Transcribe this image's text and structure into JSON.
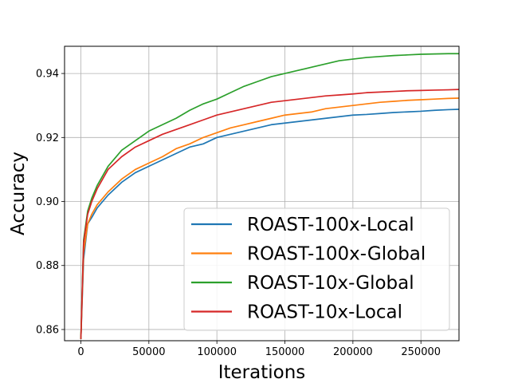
{
  "chart_data": {
    "type": "line",
    "xlabel": "Iterations",
    "ylabel": "Accuracy",
    "xlim": [
      -12000,
      278000
    ],
    "ylim": [
      0.8565,
      0.9485
    ],
    "xticks": [
      0,
      50000,
      100000,
      150000,
      200000,
      250000
    ],
    "yticks": [
      0.86,
      0.88,
      0.9,
      0.92,
      0.94
    ],
    "xtick_labels": [
      "0",
      "50000",
      "100000",
      "150000",
      "200000",
      "250000"
    ],
    "ytick_labels": [
      "0.86",
      "0.88",
      "0.90",
      "0.92",
      "0.94"
    ],
    "grid": true,
    "legend_position": "lower-right",
    "x": [
      0,
      2000,
      5000,
      8000,
      12000,
      20000,
      30000,
      40000,
      50000,
      60000,
      70000,
      80000,
      90000,
      100000,
      110000,
      120000,
      130000,
      140000,
      150000,
      160000,
      170000,
      180000,
      190000,
      200000,
      210000,
      220000,
      230000,
      240000,
      250000,
      260000,
      270000,
      278000
    ],
    "series": [
      {
        "name": "ROAST-100x-Local",
        "color": "#1f77b4",
        "values": [
          0.857,
          0.882,
          0.893,
          0.895,
          0.898,
          0.902,
          0.906,
          0.909,
          0.911,
          0.913,
          0.915,
          0.917,
          0.918,
          0.92,
          0.921,
          0.922,
          0.923,
          0.924,
          0.9245,
          0.925,
          0.9255,
          0.926,
          0.9265,
          0.927,
          0.9272,
          0.9275,
          0.9278,
          0.928,
          0.9282,
          0.9285,
          0.9287,
          0.9288
        ]
      },
      {
        "name": "ROAST-100x-Global",
        "color": "#ff7f0e",
        "values": [
          0.857,
          0.884,
          0.893,
          0.896,
          0.899,
          0.903,
          0.907,
          0.91,
          0.912,
          0.914,
          0.9165,
          0.918,
          0.92,
          0.9215,
          0.923,
          0.924,
          0.925,
          0.926,
          0.927,
          0.9275,
          0.928,
          0.929,
          0.9295,
          0.93,
          0.9305,
          0.931,
          0.9313,
          0.9316,
          0.9318,
          0.932,
          0.9322,
          0.9323
        ]
      },
      {
        "name": "ROAST-10x-Global",
        "color": "#2ca02c",
        "values": [
          0.857,
          0.888,
          0.897,
          0.901,
          0.905,
          0.911,
          0.916,
          0.919,
          0.922,
          0.924,
          0.926,
          0.9285,
          0.9305,
          0.932,
          0.934,
          0.936,
          0.9375,
          0.939,
          0.94,
          0.941,
          0.942,
          0.943,
          0.944,
          0.9445,
          0.945,
          0.9453,
          0.9456,
          0.9458,
          0.946,
          0.9461,
          0.9462,
          0.9462
        ]
      },
      {
        "name": "ROAST-10x-Local",
        "color": "#d62728",
        "values": [
          0.857,
          0.887,
          0.896,
          0.9,
          0.904,
          0.91,
          0.914,
          0.917,
          0.919,
          0.921,
          0.9225,
          0.924,
          0.9255,
          0.927,
          0.928,
          0.929,
          0.93,
          0.931,
          0.9315,
          0.932,
          0.9325,
          0.933,
          0.9333,
          0.9336,
          0.934,
          0.9342,
          0.9344,
          0.9346,
          0.9347,
          0.9348,
          0.9349,
          0.935
        ]
      }
    ]
  }
}
